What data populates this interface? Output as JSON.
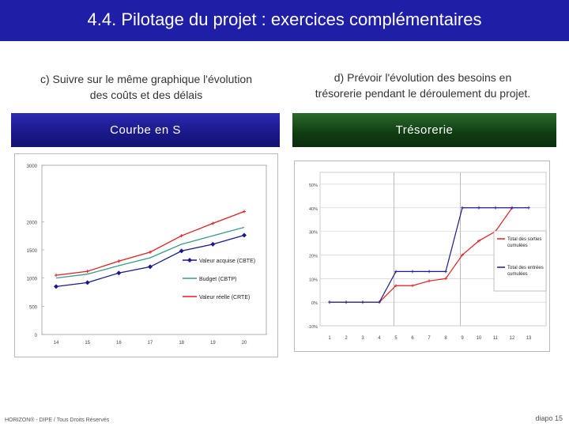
{
  "title": "4.4. Pilotage du projet : exercices complémentaires",
  "left": {
    "subtitle_line1": "c) Suivre sur le même graphique l'évolution",
    "subtitle_line2": "des coûts et des délais",
    "panel_title": "Courbe en S"
  },
  "right": {
    "subtitle_line1": "d) Prévoir l'évolution des besoins en",
    "subtitle_line2": "trésorerie pendant le déroulement du projet.",
    "panel_title": "Trésorerie"
  },
  "footer": {
    "copyright": "HORIZON® - DIPE / Tous Droits Réservés",
    "slide": "diapo 15"
  },
  "colors": {
    "title_bg": "#1f1ea6",
    "left_head": "#1a1888",
    "right_head": "#0f3c12",
    "red": "#e02020",
    "blue": "#1a1a8c",
    "teal": "#3a9a8a"
  },
  "chart_data": [
    {
      "type": "line",
      "categories": [
        "14",
        "15",
        "16",
        "17",
        "18",
        "19",
        "20"
      ],
      "ylim": [
        0,
        3000
      ],
      "yticks": [
        "0",
        "500",
        "1000",
        "1500",
        "2000",
        "3000"
      ],
      "series": [
        {
          "name": "Valeur acquise (CBTE)",
          "color": "#1a1a8c",
          "marker": "diamond",
          "values": [
            850,
            920,
            1090,
            1200,
            1480,
            1600,
            1760
          ]
        },
        {
          "name": "Budget (CBTP)",
          "color": "#3a9a8a",
          "marker": "none",
          "values": [
            1000,
            1070,
            1220,
            1360,
            1600,
            1750,
            1900
          ]
        },
        {
          "name": "Valeur réelle (CRTE)",
          "color": "#e02020",
          "marker": "plus",
          "values": [
            1050,
            1120,
            1300,
            1460,
            1750,
            1970,
            2180
          ]
        }
      ],
      "legend": "center-right"
    },
    {
      "type": "line",
      "categories": [
        "1",
        "2",
        "3",
        "4",
        "5",
        "6",
        "7",
        "8",
        "9",
        "10",
        "11",
        "12",
        "13"
      ],
      "ylim": [
        -10,
        55
      ],
      "yticks": [
        "-10%",
        "0%",
        "10%",
        "20%",
        "30%",
        "40%",
        "50%"
      ],
      "series": [
        {
          "name": "Total des sorties cumulées",
          "color": "#e02020",
          "values": [
            0,
            0,
            0,
            0,
            7,
            7,
            9,
            10,
            20,
            26,
            30,
            40,
            null
          ]
        },
        {
          "name": "Total des entrées cumulées",
          "color": "#1a1a8c",
          "values": [
            0,
            0,
            0,
            0,
            13,
            13,
            13,
            13,
            40,
            40,
            40,
            40,
            40
          ]
        }
      ],
      "legend": "right"
    }
  ]
}
